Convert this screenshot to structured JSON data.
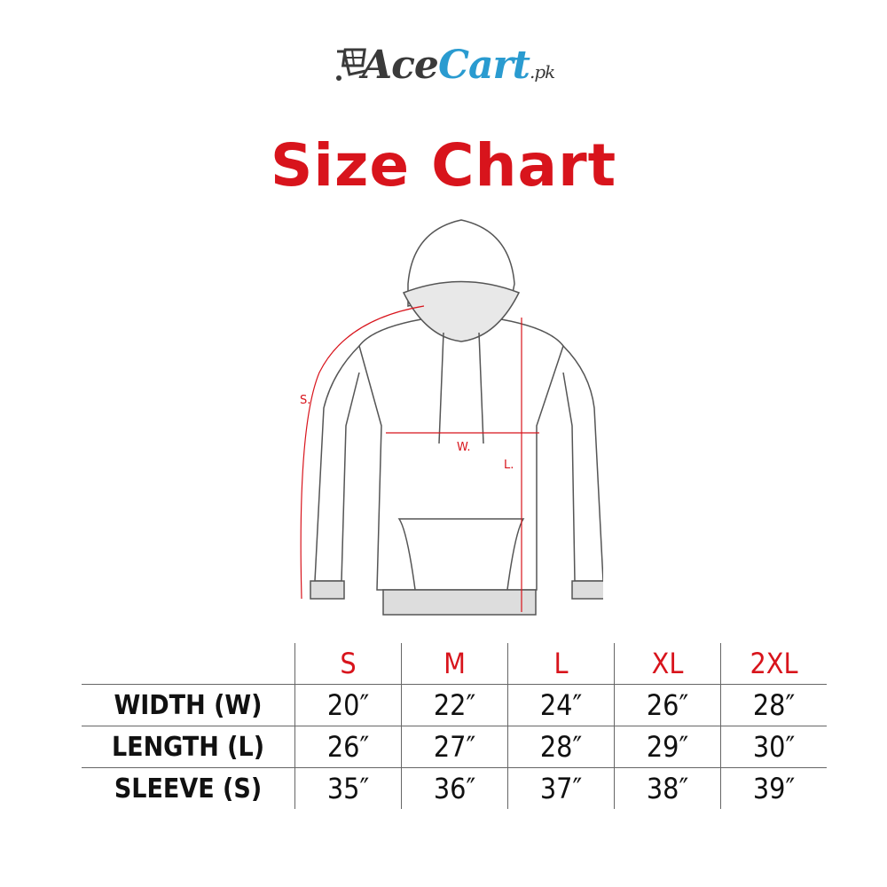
{
  "brand": {
    "name_part1": "Ace",
    "name_part2": "Cart",
    "suffix": ".pk",
    "icon": "shopping-cart-icon",
    "colors": {
      "dark": "#3a3a3a",
      "blue": "#2a9bd0"
    }
  },
  "title": "Size Chart",
  "accent_color": "#d8141c",
  "diagram": {
    "sleeve_label": "S.",
    "width_label": "W.",
    "length_label": "L."
  },
  "table": {
    "sizes": [
      "S",
      "M",
      "L",
      "XL",
      "2XL"
    ],
    "rows": [
      {
        "label": "WIDTH (W)",
        "values": [
          "20″",
          "22″",
          "24″",
          "26″",
          "28″"
        ]
      },
      {
        "label": "LENGTH (L)",
        "values": [
          "26″",
          "27″",
          "28″",
          "29″",
          "30″"
        ]
      },
      {
        "label": "SLEEVE (S)",
        "values": [
          "35″",
          "36″",
          "37″",
          "38″",
          "39″"
        ]
      }
    ]
  }
}
